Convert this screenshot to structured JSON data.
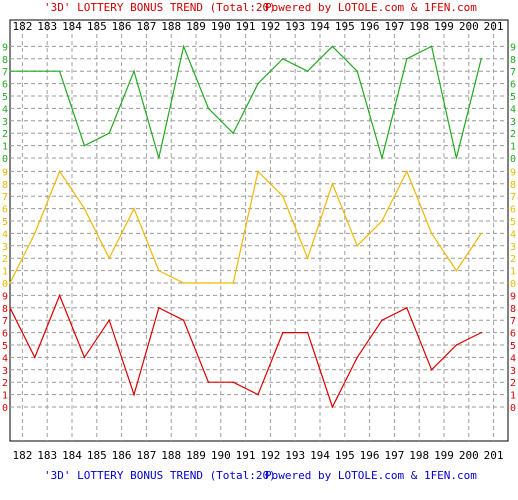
{
  "header": {
    "title_left": "'3D' LOTTERY BONUS TREND (Total:20)",
    "title_right": "Powered by LOTOLE.com & 1FEN.com"
  },
  "footer": {
    "title_left": "'3D' LOTTERY BONUS TREND (Total:20)",
    "title_right": "Powered by LOTOLE.com & 1FEN.com"
  },
  "colors": {
    "title_left": "#cc0000",
    "title_right": "#cc0000",
    "footer_left": "#0000cc",
    "footer_right": "#0000cc",
    "top_band": "#22aa22",
    "middle_band": "#f0b800",
    "bottom_band": "#dd0000",
    "grid_v": "#a0a0a0",
    "grid_h": "#9a9a9a"
  },
  "chart_data": {
    "type": "line",
    "x": [
      "182",
      "183",
      "184",
      "185",
      "186",
      "187",
      "188",
      "189",
      "190",
      "191",
      "192",
      "193",
      "194",
      "195",
      "196",
      "197",
      "198",
      "199",
      "200",
      "201"
    ],
    "ytick_labels": [
      "0",
      "1",
      "2",
      "3",
      "4",
      "5",
      "6",
      "7",
      "8",
      "9"
    ],
    "grid": true,
    "series": [
      {
        "band": "top",
        "color": "#22aa22",
        "values": [
          7,
          7,
          7,
          1,
          2,
          7,
          0,
          9,
          4,
          2,
          6,
          8,
          7,
          9,
          7,
          0,
          8,
          9,
          0,
          8
        ]
      },
      {
        "band": "middle",
        "color": "#f0b800",
        "values": [
          0,
          4,
          9,
          6,
          2,
          6,
          1,
          0,
          0,
          0,
          9,
          7,
          2,
          8,
          3,
          5,
          9,
          4,
          1,
          4
        ]
      },
      {
        "band": "bottom",
        "color": "#dd0000",
        "values": [
          8,
          4,
          9,
          4,
          7,
          1,
          8,
          7,
          2,
          2,
          1,
          6,
          6,
          0,
          4,
          7,
          8,
          3,
          5,
          6
        ]
      }
    ]
  }
}
